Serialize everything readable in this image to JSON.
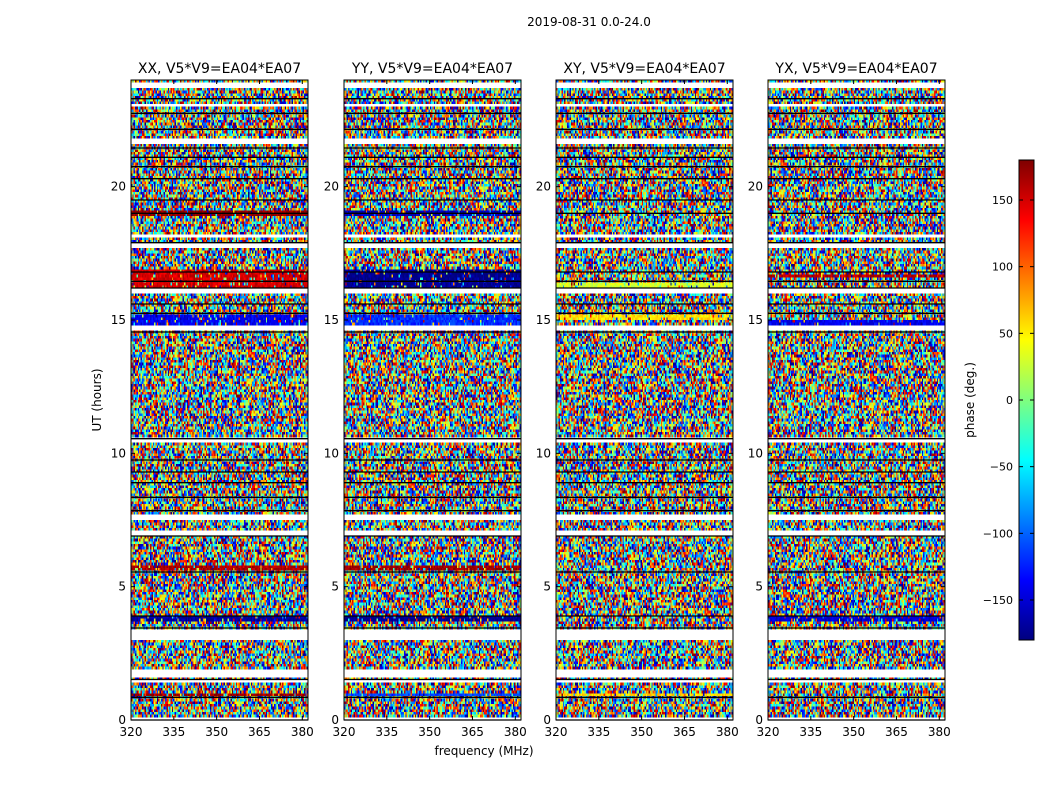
{
  "figure": {
    "suptitle": "2019-08-31 0.0-24.0",
    "xlabel": "frequency (MHz)",
    "ylabel": "UT (hours)",
    "colorbar_label": "phase (deg.)"
  },
  "colormap": {
    "name": "jet",
    "range": [
      -180,
      180
    ],
    "stops": [
      "#00007f",
      "#0000ff",
      "#007fff",
      "#00ffff",
      "#7fff7f",
      "#ffff00",
      "#ff7f00",
      "#ff0000",
      "#7f0000"
    ]
  },
  "chart_data": [
    {
      "type": "heatmap",
      "title": "XX, V5*V9=EA04*EA07",
      "xlim": [
        320,
        382
      ],
      "ylim": [
        0,
        24
      ],
      "xticks": [
        320,
        335,
        350,
        365,
        380
      ],
      "yticks": [
        0,
        5,
        10,
        15,
        20
      ],
      "value_range": [
        -180,
        180
      ],
      "coherent_bands": [
        {
          "ut": [
            0.85,
            1.0
          ],
          "phase": 170
        },
        {
          "ut": [
            3.75,
            3.9
          ],
          "phase": -170
        },
        {
          "ut": [
            5.65,
            5.8
          ],
          "phase": 165
        },
        {
          "ut": [
            14.85,
            15.15
          ],
          "phase": -140
        },
        {
          "ut": [
            16.2,
            16.85
          ],
          "phase": 150
        },
        {
          "ut": [
            18.9,
            19.05
          ],
          "phase": 175
        }
      ]
    },
    {
      "type": "heatmap",
      "title": "YY, V5*V9=EA04*EA07",
      "xlim": [
        320,
        382
      ],
      "ylim": [
        0,
        24
      ],
      "xticks": [
        320,
        335,
        350,
        365,
        380
      ],
      "yticks": [
        0,
        5,
        10,
        15,
        20
      ],
      "value_range": [
        -180,
        180
      ],
      "coherent_bands": [
        {
          "ut": [
            0.85,
            1.0
          ],
          "phase": -110
        },
        {
          "ut": [
            3.75,
            3.9
          ],
          "phase": -175
        },
        {
          "ut": [
            5.65,
            5.8
          ],
          "phase": 170
        },
        {
          "ut": [
            14.85,
            15.15
          ],
          "phase": -120
        },
        {
          "ut": [
            16.2,
            16.85
          ],
          "phase": -175
        },
        {
          "ut": [
            18.9,
            19.05
          ],
          "phase": -160
        }
      ]
    },
    {
      "type": "heatmap",
      "title": "XY, V5*V9=EA04*EA07",
      "xlim": [
        320,
        382
      ],
      "ylim": [
        0,
        24
      ],
      "xticks": [
        320,
        335,
        350,
        365,
        380
      ],
      "yticks": [
        0,
        5,
        10,
        15,
        20
      ],
      "value_range": [
        -180,
        180
      ],
      "coherent_bands": [
        {
          "ut": [
            0.85,
            1.0
          ],
          "phase": 60
        },
        {
          "ut": [
            15.0,
            15.15
          ],
          "phase": 55
        },
        {
          "ut": [
            16.2,
            16.4
          ],
          "phase": 30
        }
      ]
    },
    {
      "type": "heatmap",
      "title": "YX, V5*V9=EA04*EA07",
      "xlim": [
        320,
        382
      ],
      "ylim": [
        0,
        24
      ],
      "xticks": [
        320,
        335,
        350,
        365,
        380
      ],
      "yticks": [
        0,
        5,
        10,
        15,
        20
      ],
      "value_range": [
        -180,
        180
      ],
      "coherent_bands": [
        {
          "ut": [
            3.75,
            3.9
          ],
          "phase": -150
        },
        {
          "ut": [
            14.85,
            15.0
          ],
          "phase": -140
        },
        {
          "ut": [
            16.55,
            16.7
          ],
          "phase": 160
        }
      ]
    }
  ],
  "flagged_ut_ranges": [
    [
      0.0,
      0.05
    ],
    [
      1.45,
      1.5
    ],
    [
      1.65,
      1.8
    ],
    [
      3.05,
      3.12
    ],
    [
      3.25,
      3.4
    ],
    [
      6.95,
      7.05
    ],
    [
      7.55,
      7.6
    ],
    [
      10.45,
      10.52
    ],
    [
      14.6,
      14.72
    ],
    [
      16.05,
      16.12
    ],
    [
      17.75,
      17.85
    ],
    [
      18.1,
      18.15
    ],
    [
      21.7,
      21.75
    ],
    [
      23.0,
      23.05
    ],
    [
      23.75,
      23.85
    ]
  ],
  "dark_ut_lines": [
    0.0,
    0.85,
    1.52,
    3.45,
    3.9,
    5.55,
    6.9,
    7.85,
    8.35,
    8.9,
    9.3,
    9.75,
    10.55,
    14.55,
    15.25,
    15.6,
    16.2,
    16.45,
    16.8,
    17.9,
    19.0,
    19.5,
    20.3,
    20.75,
    21.1,
    21.45,
    22.15,
    22.75,
    23.3
  ],
  "colorbar": {
    "ticks": [
      150,
      100,
      50,
      0,
      -50,
      -100,
      -150
    ],
    "tick_labels": [
      "150",
      "100",
      "50",
      "0",
      "−50",
      "−100",
      "−150"
    ]
  }
}
